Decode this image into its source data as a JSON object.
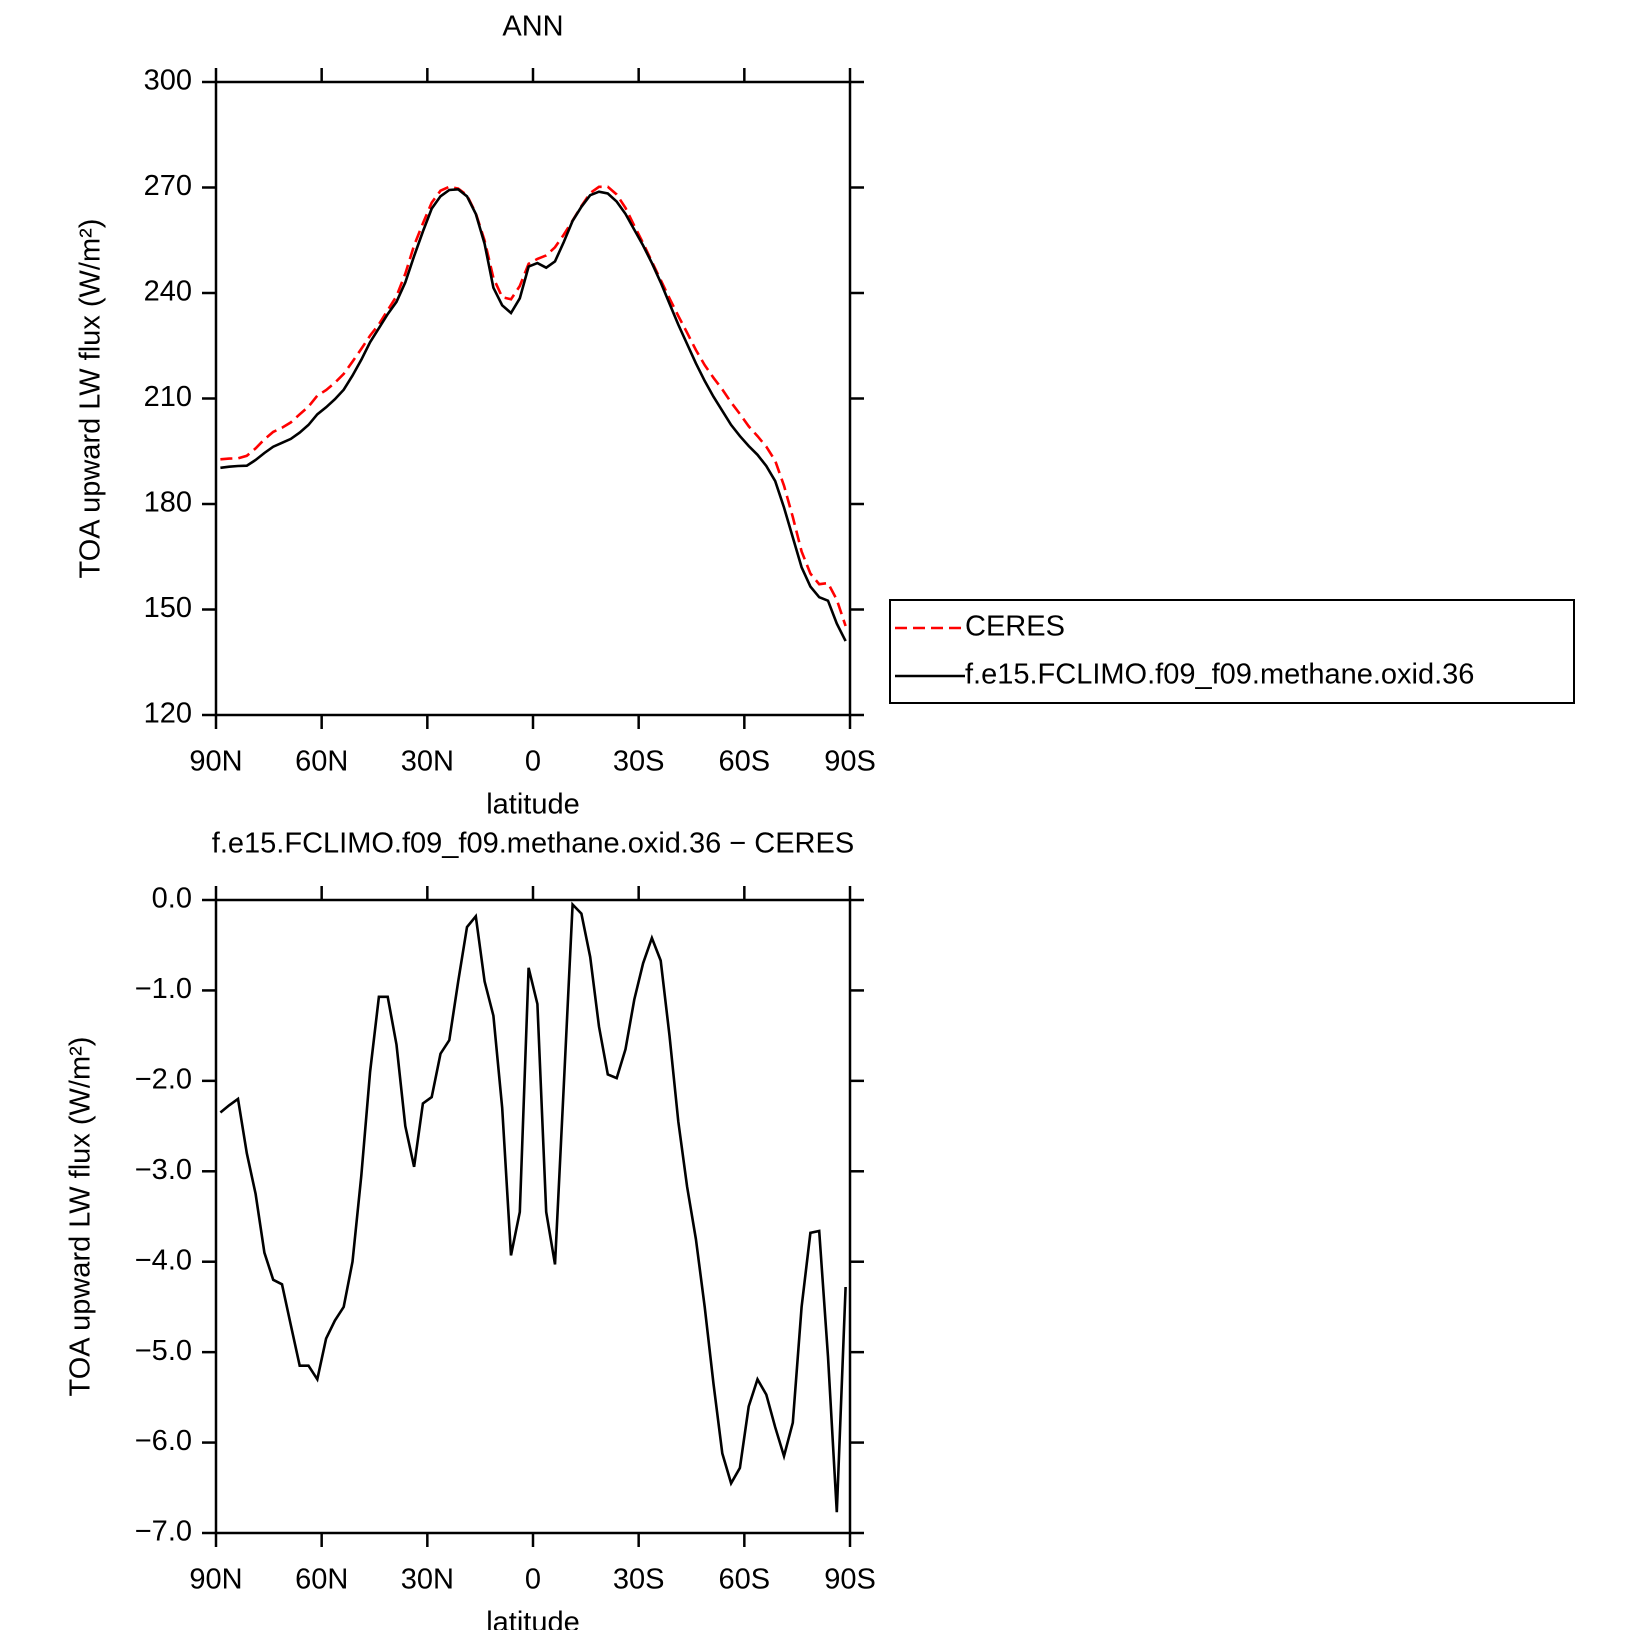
{
  "chart_data": [
    {
      "type": "line",
      "title": "ANN",
      "xlabel": "latitude",
      "ylabel": "TOA upward LW flux (W/m²)",
      "x": [
        88.75,
        86.25,
        83.75,
        81.25,
        78.75,
        76.25,
        73.75,
        71.25,
        68.75,
        66.25,
        63.75,
        61.25,
        58.75,
        56.25,
        53.75,
        51.25,
        48.75,
        46.25,
        43.75,
        41.25,
        38.75,
        36.25,
        33.75,
        31.25,
        28.75,
        26.25,
        23.75,
        21.25,
        18.75,
        16.25,
        13.75,
        11.25,
        8.75,
        6.25,
        3.75,
        1.25,
        -1.25,
        -3.75,
        -6.25,
        -8.75,
        -11.25,
        -13.75,
        -16.25,
        -18.75,
        -21.25,
        -23.75,
        -26.25,
        -28.75,
        -31.25,
        -33.75,
        -36.25,
        -38.75,
        -41.25,
        -43.75,
        -46.25,
        -48.75,
        -51.25,
        -53.75,
        -56.25,
        -58.75,
        -61.25,
        -63.75,
        -66.25,
        -68.75,
        -71.25,
        -73.75,
        -76.25,
        -78.75,
        -81.25,
        -83.75,
        -86.25,
        -88.75
      ],
      "xlim": [
        90,
        -90
      ],
      "xticks": [
        {
          "value": 90,
          "label": "90N"
        },
        {
          "value": 60,
          "label": "60N"
        },
        {
          "value": 30,
          "label": "30N"
        },
        0,
        {
          "value": -30,
          "label": "30S"
        },
        {
          "value": -60,
          "label": "60S"
        },
        {
          "value": -90,
          "label": "90S"
        }
      ],
      "ylim": [
        120,
        300
      ],
      "yticks": [
        120,
        150,
        180,
        210,
        240,
        270,
        300
      ],
      "legend": "right",
      "series": [
        {
          "name": "CERES",
          "color": "#ff0000",
          "dash": true,
          "values": [
            192.7,
            192.9,
            193.0,
            193.7,
            195.8,
            198.4,
            200.5,
            201.7,
            203.2,
            205.5,
            207.7,
            210.8,
            212.4,
            214.5,
            217.0,
            220.5,
            224.1,
            227.9,
            231.1,
            235.1,
            239.1,
            245.5,
            253.5,
            259.8,
            265.7,
            269.1,
            270.2,
            269.7,
            267.8,
            262.7,
            254.9,
            244.3,
            238.8,
            238.2,
            242.0,
            248.3,
            249.7,
            250.7,
            253.0,
            256.6,
            260.6,
            264.7,
            268.4,
            270.2,
            270.2,
            268.0,
            264.2,
            259.1,
            254.2,
            248.9,
            243.7,
            238.5,
            233.5,
            228.7,
            223.8,
            219.5,
            215.9,
            212.6,
            208.9,
            205.6,
            202.1,
            199.3,
            196.3,
            192.3,
            185.2,
            176.3,
            166.5,
            160.2,
            157.2,
            157.5,
            152.8,
            145.3
          ]
        },
        {
          "name": "f.e15.FCLIMO.f09_f09.methane.oxid.36",
          "color": "#000000",
          "dash": false,
          "values": [
            190.3,
            190.6,
            190.8,
            190.9,
            192.5,
            194.5,
            196.3,
            197.4,
            198.5,
            200.3,
            202.5,
            205.5,
            207.5,
            209.8,
            212.5,
            216.5,
            221,
            226,
            230,
            234,
            237.5,
            243,
            250.5,
            257.5,
            264,
            267.5,
            269.3,
            269.5,
            267.5,
            262.5,
            254,
            241.5,
            236.5,
            234.3,
            238.5,
            247.5,
            248.5,
            247.2,
            249,
            254.5,
            260.5,
            264.5,
            267.8,
            268.8,
            268.3,
            266,
            262.5,
            258,
            253.5,
            248.5,
            243,
            237,
            231,
            225.5,
            220,
            215,
            210.5,
            206.5,
            202.5,
            199.3,
            196.5,
            194,
            190.8,
            186.5,
            179,
            170.5,
            162,
            156.5,
            153.5,
            152.5,
            146,
            141
          ]
        }
      ]
    },
    {
      "type": "line",
      "title": "f.e15.FCLIMO.f09_f09.methane.oxid.36 − CERES",
      "xlabel": "latitude",
      "ylabel": "TOA upward LW flux (W/m²)",
      "x": [
        88.75,
        86.25,
        83.75,
        81.25,
        78.75,
        76.25,
        73.75,
        71.25,
        68.75,
        66.25,
        63.75,
        61.25,
        58.75,
        56.25,
        53.75,
        51.25,
        48.75,
        46.25,
        43.75,
        41.25,
        38.75,
        36.25,
        33.75,
        31.25,
        28.75,
        26.25,
        23.75,
        21.25,
        18.75,
        16.25,
        13.75,
        11.25,
        8.75,
        6.25,
        3.75,
        1.25,
        -1.25,
        -3.75,
        -6.25,
        -8.75,
        -11.25,
        -13.75,
        -16.25,
        -18.75,
        -21.25,
        -23.75,
        -26.25,
        -28.75,
        -31.25,
        -33.75,
        -36.25,
        -38.75,
        -41.25,
        -43.75,
        -46.25,
        -48.75,
        -51.25,
        -53.75,
        -56.25,
        -58.75,
        -61.25,
        -63.75,
        -66.25,
        -68.75,
        -71.25,
        -73.75,
        -76.25,
        -78.75,
        -81.25,
        -83.75,
        -86.25,
        -88.75
      ],
      "xlim": [
        90,
        -90
      ],
      "xticks": [
        {
          "value": 90,
          "label": "90N"
        },
        {
          "value": 60,
          "label": "60N"
        },
        {
          "value": 30,
          "label": "30N"
        },
        0,
        {
          "value": -30,
          "label": "30S"
        },
        {
          "value": -60,
          "label": "60S"
        },
        {
          "value": -90,
          "label": "90S"
        }
      ],
      "ylim": [
        -7,
        0
      ],
      "yticks": [
        {
          "value": -7,
          "label": "−7.0"
        },
        {
          "value": -6,
          "label": "−6.0"
        },
        {
          "value": -5,
          "label": "−5.0"
        },
        {
          "value": -4,
          "label": "−4.0"
        },
        {
          "value": -3,
          "label": "−3.0"
        },
        {
          "value": -2,
          "label": "−2.0"
        },
        {
          "value": -1,
          "label": "−1.0"
        },
        {
          "value": 0,
          "label": "0.0"
        }
      ],
      "color": "#000000",
      "values": [
        -2.35,
        -2.27,
        -2.2,
        -2.8,
        -3.25,
        -3.9,
        -4.2,
        -4.25,
        -4.7,
        -5.15,
        -5.15,
        -5.3,
        -4.85,
        -4.65,
        -4.5,
        -4.0,
        -3.05,
        -1.9,
        -1.07,
        -1.07,
        -1.6,
        -2.5,
        -2.95,
        -2.25,
        -2.18,
        -1.7,
        -1.55,
        -0.9,
        -0.3,
        -0.18,
        -0.9,
        -1.28,
        -2.3,
        -3.93,
        -3.45,
        -0.75,
        -1.15,
        -3.45,
        -4.03,
        -2.05,
        -0.05,
        -0.15,
        -0.63,
        -1.4,
        -1.93,
        -1.97,
        -1.65,
        -1.1,
        -0.7,
        -0.42,
        -0.67,
        -1.5,
        -2.45,
        -3.17,
        -3.75,
        -4.5,
        -5.35,
        -6.12,
        -6.45,
        -6.28,
        -5.6,
        -5.3,
        -5.47,
        -5.83,
        -6.15,
        -5.78,
        -4.5,
        -3.68,
        -3.66,
        -5.05,
        -6.77,
        -4.28
      ]
    }
  ]
}
